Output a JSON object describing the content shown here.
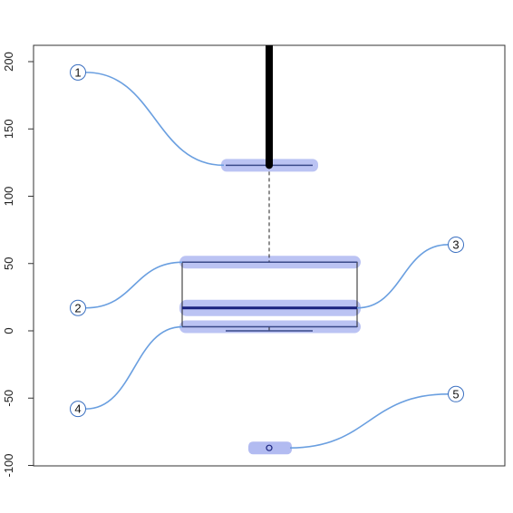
{
  "chart_data": {
    "type": "boxplot",
    "title": "",
    "xlabel": "",
    "ylabel": "",
    "ylim": [
      -100,
      200
    ],
    "y_ticks": [
      -100,
      -50,
      0,
      50,
      100,
      150,
      200
    ],
    "y_tick_labels": [
      "-100",
      "-50",
      "0",
      "50",
      "100",
      "150",
      "200"
    ],
    "box": {
      "whisker_low": 0,
      "q1": 3,
      "median": 17,
      "q3": 51,
      "whisker_high": 123,
      "outlier_range": [
        123,
        215
      ],
      "marked_point": -87
    },
    "callouts": [
      {
        "id": "1",
        "label": "1",
        "target": "upper-whisker",
        "value": 123,
        "label_y": 192
      },
      {
        "id": "2",
        "label": "2",
        "target": "third-quartile",
        "value": 51,
        "label_y": 17
      },
      {
        "id": "3",
        "label": "3",
        "target": "median",
        "value": 17,
        "label_y": 64
      },
      {
        "id": "4",
        "label": "4",
        "target": "first-quartile",
        "value": 3,
        "label_y": -58
      },
      {
        "id": "5",
        "label": "5",
        "target": "marked-point",
        "value": -87,
        "label_y": -47
      }
    ],
    "colors": {
      "highlight": "#aab4f0",
      "connector": "#6a9fe0",
      "median": "#1a237e",
      "box": "#222222",
      "whisker": "#3b4a8a"
    }
  }
}
